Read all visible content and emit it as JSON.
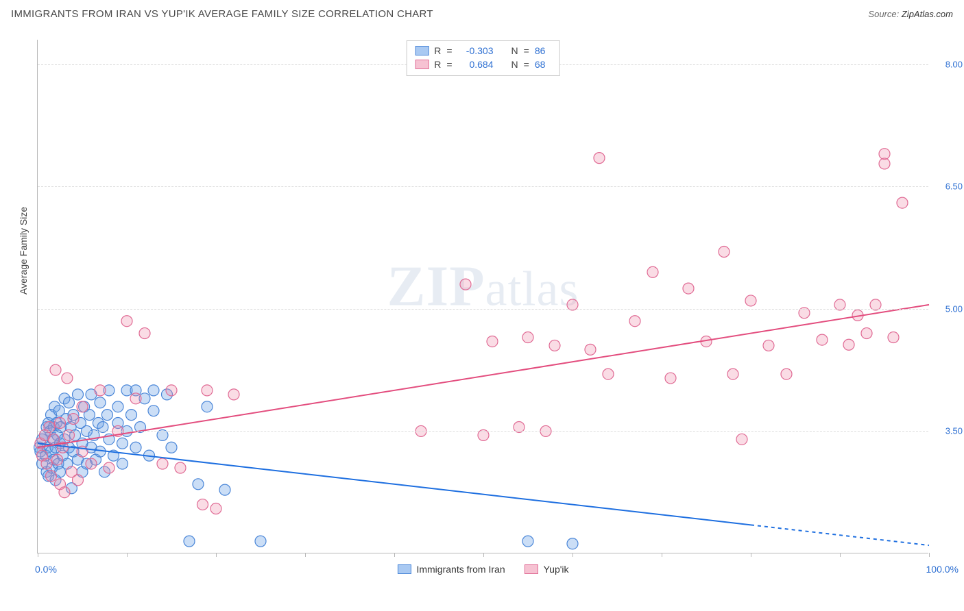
{
  "header": {
    "title": "IMMIGRANTS FROM IRAN VS YUP'IK AVERAGE FAMILY SIZE CORRELATION CHART",
    "source_label": "Source:",
    "source_value": "ZipAtlas.com"
  },
  "watermark": {
    "prefix": "ZIP",
    "suffix": "atlas"
  },
  "chart": {
    "type": "scatter",
    "background_color": "#ffffff",
    "grid_color": "#dcdcdc",
    "axis_color": "#b8b8b8",
    "y_title": "Average Family Size",
    "y_title_fontsize": 14,
    "y_title_color": "#444444",
    "x_min": 0,
    "x_max": 100,
    "y_min": 2.0,
    "y_max": 8.3,
    "y_ticks": [
      3.5,
      5.0,
      6.5,
      8.0
    ],
    "x_tick_positions": [
      0,
      10,
      20,
      30,
      40,
      50,
      60,
      70,
      80,
      90,
      100
    ],
    "x_start_label": "0.0%",
    "x_end_label": "100.0%",
    "tick_label_color": "#2d6fd2",
    "tick_label_fontsize": 13,
    "marker_radius": 8,
    "marker_stroke_width": 1.2,
    "trend_line_width": 2,
    "trend_dash_extension": "5,5",
    "series": [
      {
        "id": "iran",
        "label": "Immigrants from Iran",
        "fill_color": "rgba(106,160,230,0.35)",
        "stroke_color": "#4a86d8",
        "trend_color": "#1e6fe0",
        "legend_fill": "#a9c9f2",
        "legend_border": "#4a86d8",
        "R": "-0.303",
        "N": "86",
        "trend": {
          "x1": 0,
          "y1": 3.35,
          "x2_solid": 80,
          "y2_solid": 2.35,
          "x2_dash": 100,
          "y2_dash": 2.1
        },
        "points": [
          [
            0.2,
            3.3
          ],
          [
            0.3,
            3.25
          ],
          [
            0.5,
            3.4
          ],
          [
            0.5,
            3.1
          ],
          [
            0.8,
            3.45
          ],
          [
            0.9,
            3.2
          ],
          [
            1.0,
            3.55
          ],
          [
            1.0,
            3.0
          ],
          [
            1.1,
            3.3
          ],
          [
            1.2,
            3.6
          ],
          [
            1.2,
            2.95
          ],
          [
            1.4,
            3.5
          ],
          [
            1.5,
            3.25
          ],
          [
            1.5,
            3.7
          ],
          [
            1.6,
            3.05
          ],
          [
            1.7,
            3.4
          ],
          [
            1.8,
            3.15
          ],
          [
            1.8,
            3.55
          ],
          [
            1.9,
            3.8
          ],
          [
            2.0,
            3.3
          ],
          [
            2.0,
            2.9
          ],
          [
            2.1,
            3.6
          ],
          [
            2.2,
            3.45
          ],
          [
            2.3,
            3.1
          ],
          [
            2.4,
            3.75
          ],
          [
            2.5,
            3.35
          ],
          [
            2.5,
            3.0
          ],
          [
            2.6,
            3.55
          ],
          [
            2.8,
            3.2
          ],
          [
            3.0,
            3.9
          ],
          [
            3.0,
            3.4
          ],
          [
            3.2,
            3.65
          ],
          [
            3.3,
            3.1
          ],
          [
            3.5,
            3.85
          ],
          [
            3.5,
            3.3
          ],
          [
            3.7,
            3.55
          ],
          [
            3.8,
            2.8
          ],
          [
            4.0,
            3.7
          ],
          [
            4.0,
            3.25
          ],
          [
            4.2,
            3.45
          ],
          [
            4.5,
            3.95
          ],
          [
            4.5,
            3.15
          ],
          [
            4.8,
            3.6
          ],
          [
            5.0,
            3.35
          ],
          [
            5.0,
            3.0
          ],
          [
            5.2,
            3.8
          ],
          [
            5.5,
            3.5
          ],
          [
            5.5,
            3.1
          ],
          [
            5.8,
            3.7
          ],
          [
            6.0,
            3.3
          ],
          [
            6.0,
            3.95
          ],
          [
            6.3,
            3.45
          ],
          [
            6.5,
            3.15
          ],
          [
            6.8,
            3.6
          ],
          [
            7.0,
            3.85
          ],
          [
            7.0,
            3.25
          ],
          [
            7.3,
            3.55
          ],
          [
            7.5,
            3.0
          ],
          [
            7.8,
            3.7
          ],
          [
            8.0,
            3.4
          ],
          [
            8.0,
            4.0
          ],
          [
            8.5,
            3.2
          ],
          [
            9.0,
            3.6
          ],
          [
            9.0,
            3.8
          ],
          [
            9.5,
            3.35
          ],
          [
            9.5,
            3.1
          ],
          [
            10.0,
            4.0
          ],
          [
            10.0,
            3.5
          ],
          [
            10.5,
            3.7
          ],
          [
            11.0,
            3.3
          ],
          [
            11.0,
            4.0
          ],
          [
            11.5,
            3.55
          ],
          [
            12.0,
            3.9
          ],
          [
            12.5,
            3.2
          ],
          [
            13.0,
            3.75
          ],
          [
            13.0,
            4.0
          ],
          [
            14.0,
            3.45
          ],
          [
            14.5,
            3.95
          ],
          [
            15.0,
            3.3
          ],
          [
            17.0,
            2.15
          ],
          [
            18.0,
            2.85
          ],
          [
            21.0,
            2.78
          ],
          [
            25.0,
            2.15
          ],
          [
            19.0,
            3.8
          ],
          [
            55.0,
            2.15
          ],
          [
            60.0,
            2.12
          ]
        ]
      },
      {
        "id": "yupik",
        "label": "Yup'ik",
        "fill_color": "rgba(240,140,170,0.30)",
        "stroke_color": "#e06a94",
        "trend_color": "#e34d7e",
        "legend_fill": "#f6c2d2",
        "legend_border": "#e06a94",
        "R": "0.684",
        "N": "68",
        "trend": {
          "x1": 0,
          "y1": 3.3,
          "x2_solid": 100,
          "y2_solid": 5.05,
          "x2_dash": 100,
          "y2_dash": 5.05
        },
        "points": [
          [
            0.3,
            3.35
          ],
          [
            0.5,
            3.2
          ],
          [
            0.8,
            3.45
          ],
          [
            1.0,
            3.1
          ],
          [
            1.3,
            3.55
          ],
          [
            1.5,
            2.95
          ],
          [
            1.8,
            3.4
          ],
          [
            2.0,
            4.25
          ],
          [
            2.2,
            3.15
          ],
          [
            2.5,
            3.6
          ],
          [
            2.5,
            2.85
          ],
          [
            2.8,
            3.3
          ],
          [
            3.0,
            2.75
          ],
          [
            3.3,
            4.15
          ],
          [
            3.5,
            3.45
          ],
          [
            3.8,
            3.0
          ],
          [
            4.0,
            3.65
          ],
          [
            4.5,
            2.9
          ],
          [
            5.0,
            3.8
          ],
          [
            5.0,
            3.25
          ],
          [
            6.0,
            3.1
          ],
          [
            7.0,
            4.0
          ],
          [
            8.0,
            3.05
          ],
          [
            9.0,
            3.5
          ],
          [
            10.0,
            4.85
          ],
          [
            11.0,
            3.9
          ],
          [
            12.0,
            4.7
          ],
          [
            14.0,
            3.1
          ],
          [
            15.0,
            4.0
          ],
          [
            16.0,
            3.05
          ],
          [
            18.5,
            2.6
          ],
          [
            19.0,
            4.0
          ],
          [
            20.0,
            2.55
          ],
          [
            22.0,
            3.95
          ],
          [
            43.0,
            3.5
          ],
          [
            48.0,
            5.3
          ],
          [
            50.0,
            3.45
          ],
          [
            51.0,
            4.6
          ],
          [
            54.0,
            3.55
          ],
          [
            55.0,
            4.65
          ],
          [
            57.0,
            3.5
          ],
          [
            58.0,
            4.55
          ],
          [
            60.0,
            5.05
          ],
          [
            62.0,
            4.5
          ],
          [
            63.0,
            6.85
          ],
          [
            64.0,
            4.2
          ],
          [
            67.0,
            4.85
          ],
          [
            69.0,
            5.45
          ],
          [
            71.0,
            4.15
          ],
          [
            73.0,
            5.25
          ],
          [
            75.0,
            4.6
          ],
          [
            77.0,
            5.7
          ],
          [
            78.0,
            4.2
          ],
          [
            79.0,
            3.4
          ],
          [
            80.0,
            5.1
          ],
          [
            82.0,
            4.55
          ],
          [
            84.0,
            4.2
          ],
          [
            86.0,
            4.95
          ],
          [
            88.0,
            4.62
          ],
          [
            90.0,
            5.05
          ],
          [
            91.0,
            4.56
          ],
          [
            92.0,
            4.92
          ],
          [
            93.0,
            4.7
          ],
          [
            94.0,
            5.05
          ],
          [
            95.0,
            6.9
          ],
          [
            95.0,
            6.78
          ],
          [
            96.0,
            4.65
          ],
          [
            97.0,
            6.3
          ]
        ]
      }
    ]
  }
}
